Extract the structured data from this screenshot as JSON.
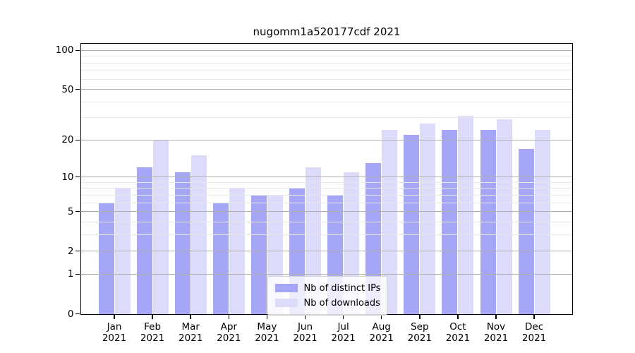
{
  "title": "nugomm1a520177cdf 2021",
  "colors": {
    "distinct_ips": "#a6a6f7",
    "downloads": "#dcdcfa",
    "grid_major": "#b0b0b0",
    "grid_minor": "#e7e7e7",
    "axis": "#000000",
    "background": "#ffffff"
  },
  "legend": {
    "items": [
      {
        "label": "Nb of distinct IPs"
      },
      {
        "label": "Nb of downloads"
      }
    ]
  },
  "y_axis": {
    "ticks": [
      {
        "value": 100,
        "label": "100"
      },
      {
        "value": 50,
        "label": "50"
      },
      {
        "value": 20,
        "label": "20"
      },
      {
        "value": 10,
        "label": "10"
      },
      {
        "value": 5,
        "label": "5"
      },
      {
        "value": 2,
        "label": "2"
      },
      {
        "value": 1,
        "label": "1"
      },
      {
        "value": 0,
        "label": "0"
      }
    ],
    "minor_gridlines": [
      3,
      4,
      6,
      7,
      8,
      9,
      30,
      40,
      60,
      70,
      80,
      90
    ]
  },
  "chart_data": {
    "type": "bar",
    "title": "nugomm1a520177cdf 2021",
    "categories": [
      "Jan 2021",
      "Feb 2021",
      "Mar 2021",
      "Apr 2021",
      "May 2021",
      "Jun 2021",
      "Jul 2021",
      "Aug 2021",
      "Sep 2021",
      "Oct 2021",
      "Nov 2021",
      "Dec 2021"
    ],
    "series": [
      {
        "name": "Nb of distinct IPs",
        "color": "#a6a6f7",
        "values": [
          6,
          12,
          11,
          6,
          7,
          8,
          7,
          13,
          22,
          24,
          24,
          17
        ]
      },
      {
        "name": "Nb of downloads",
        "color": "#dcdcfa",
        "values": [
          8,
          20,
          15,
          8,
          7,
          12,
          11,
          24,
          27,
          31,
          29,
          24
        ]
      }
    ],
    "xlabel": "",
    "ylabel": "",
    "yscale": "log10(1+x)",
    "y_tick_values": [
      0,
      1,
      2,
      5,
      10,
      20,
      50,
      100
    ],
    "ylim": [
      0,
      113
    ],
    "grid": true,
    "grid_above_bars": true,
    "legend_position": "lower center"
  }
}
